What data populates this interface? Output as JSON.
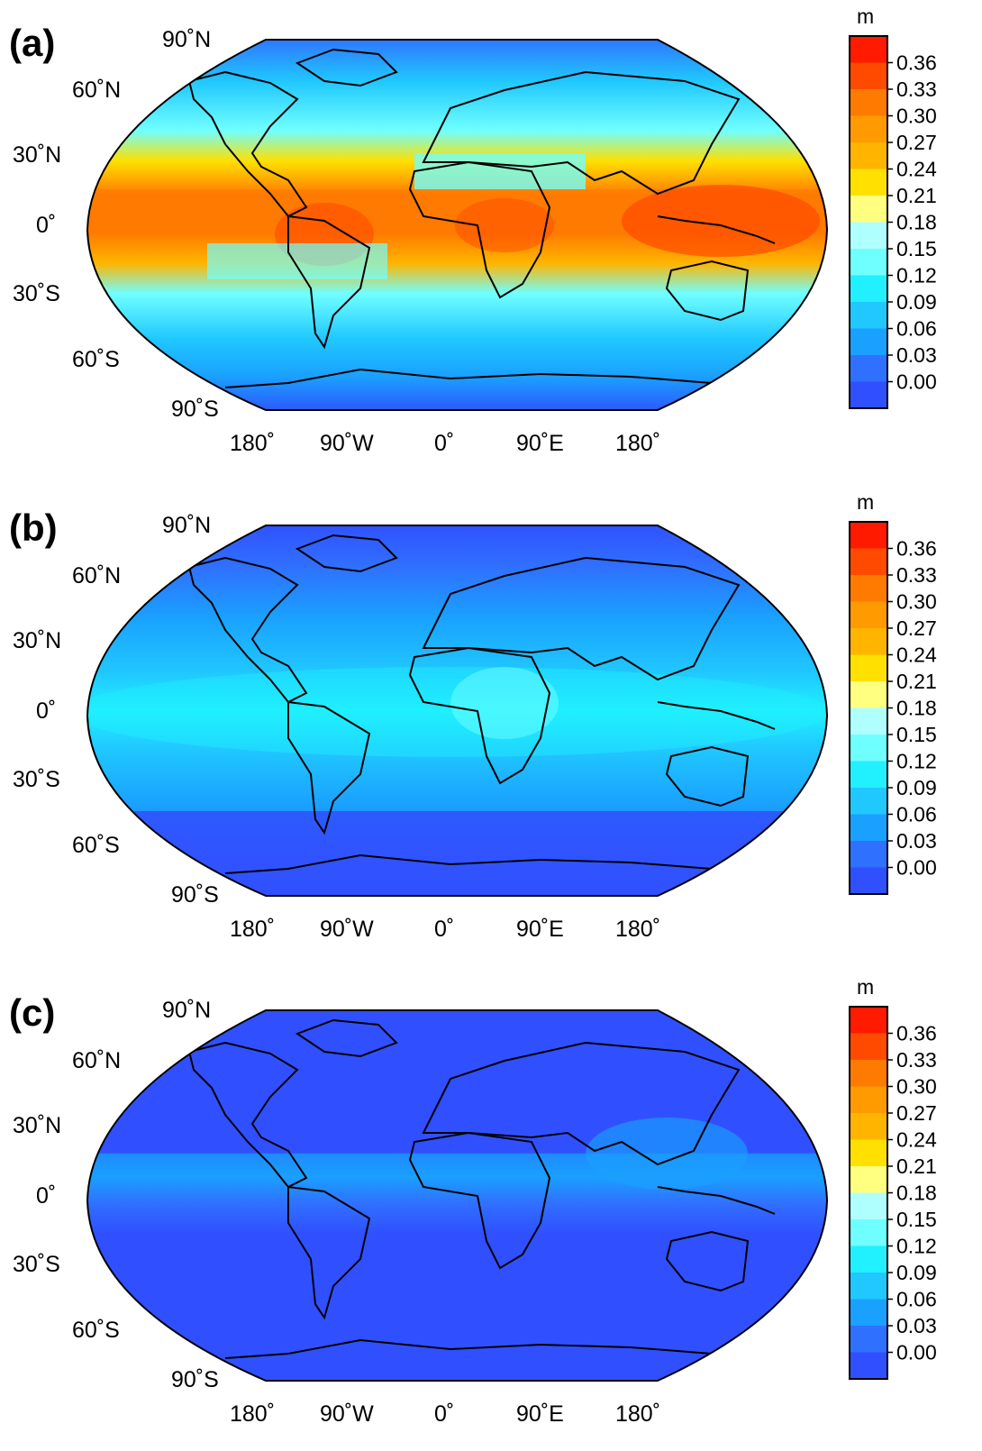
{
  "figure": {
    "colorbar": {
      "unit": "m",
      "tick_labels": [
        "0.36",
        "0.33",
        "0.30",
        "0.27",
        "0.24",
        "0.21",
        "0.18",
        "0.15",
        "0.12",
        "0.09",
        "0.06",
        "0.03",
        "0.00"
      ],
      "bin_colors": [
        "#ff1a00",
        "#ff4a00",
        "#ff7a00",
        "#ff9a00",
        "#ffb500",
        "#ffe000",
        "#ffff80",
        "#b0ffff",
        "#70ffff",
        "#20f0ff",
        "#20c8ff",
        "#1aa0ff",
        "#3070ff",
        "#3050ff"
      ]
    },
    "lat_labels": [
      "90˚N",
      "60˚N",
      "30˚N",
      "0˚",
      "30˚S",
      "60˚S",
      "90˚S"
    ],
    "lon_labels": [
      "180˚",
      "90˚W",
      "0˚",
      "90˚E",
      "180˚"
    ],
    "panels": [
      {
        "id": "a",
        "label": "(a)"
      },
      {
        "id": "b",
        "label": "(b)"
      },
      {
        "id": "c",
        "label": "(c)"
      }
    ]
  }
}
